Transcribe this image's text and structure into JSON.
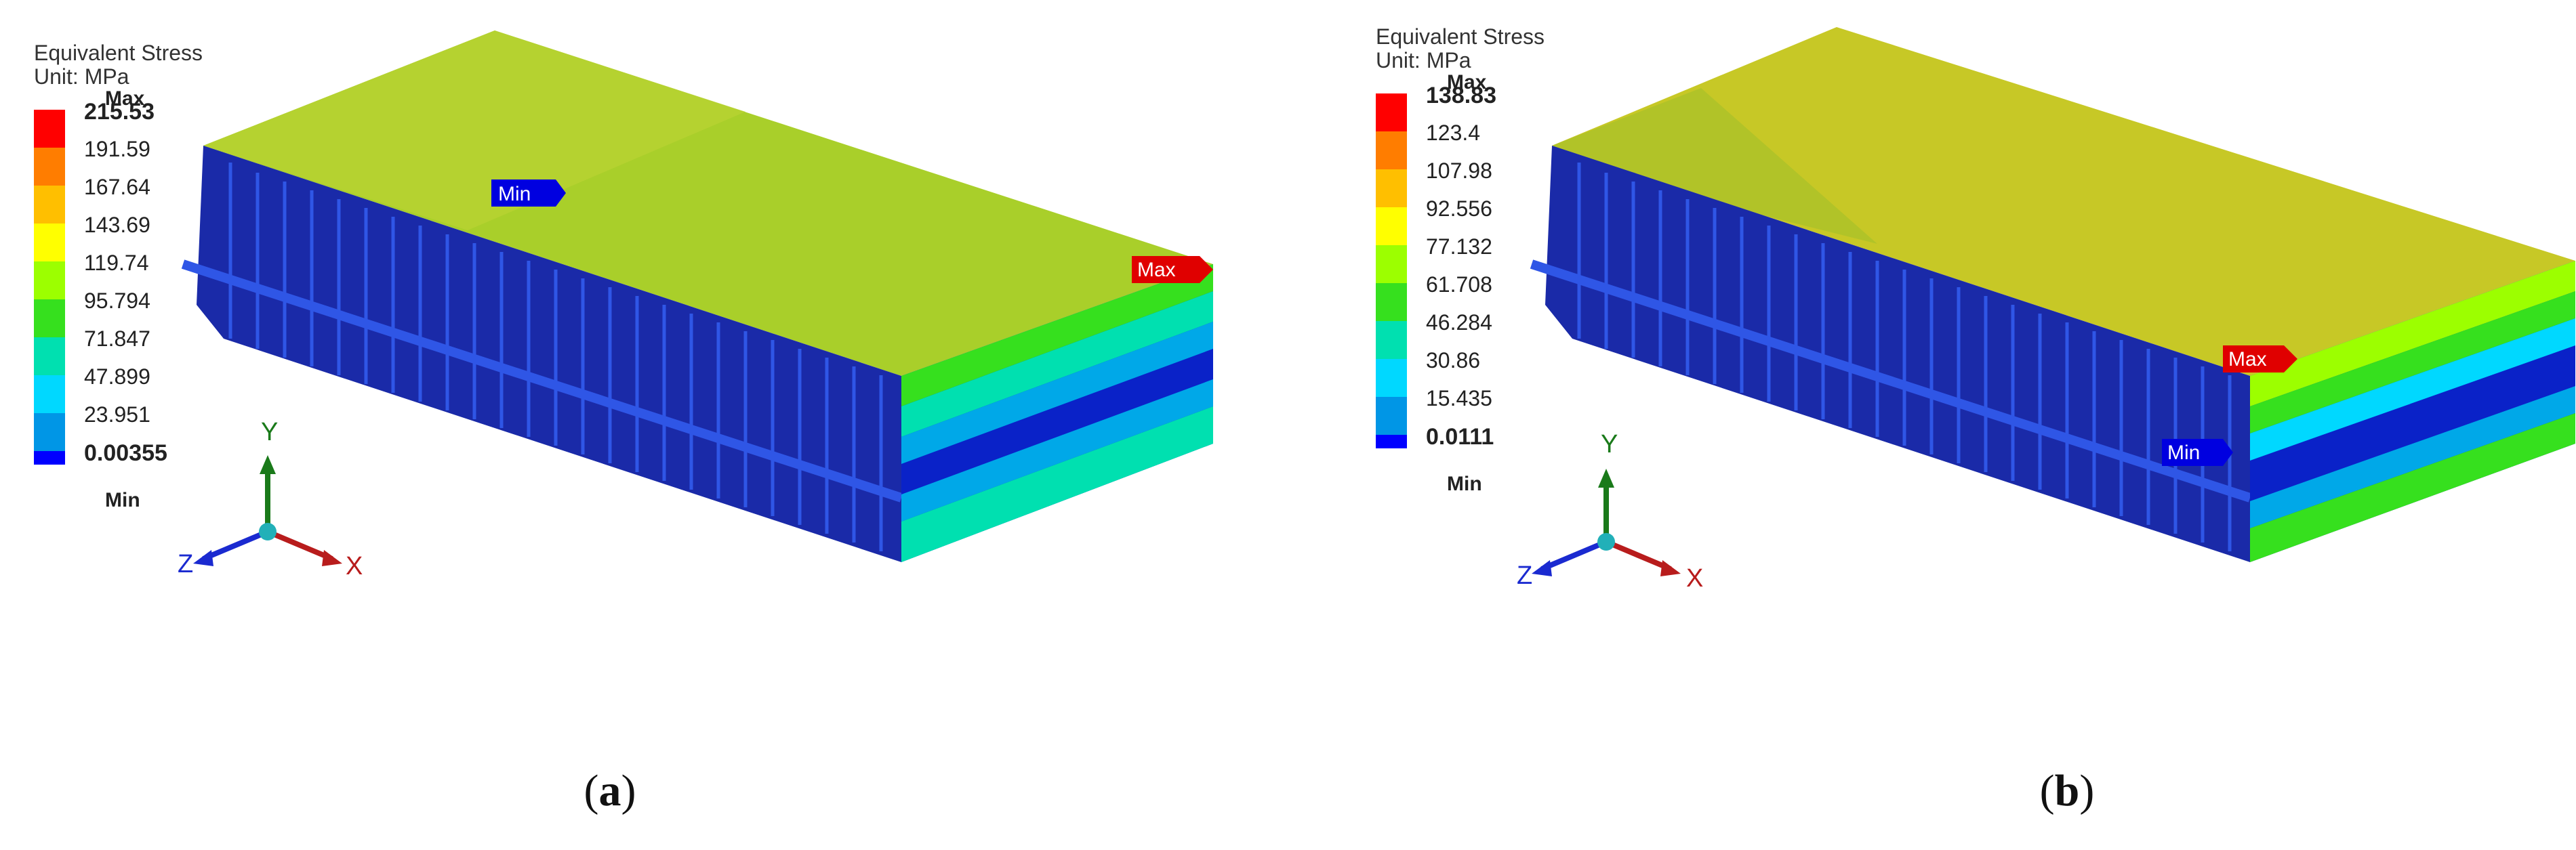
{
  "panels": [
    {
      "legend": {
        "title": "Equivalent Stress",
        "unit": "Unit: MPa",
        "max_label": "Max",
        "min_label": "Min",
        "levels": [
          "215.53",
          "191.59",
          "167.64",
          "143.69",
          "119.74",
          "95.794",
          "71.847",
          "47.899",
          "23.951",
          "0.00355"
        ],
        "colors": [
          "#ff0000",
          "#ff7d00",
          "#ffbf00",
          "#ffff00",
          "#9cff00",
          "#36e01e",
          "#00e0b0",
          "#00d8ff",
          "#0096e6",
          "#0000ff"
        ]
      },
      "probe_max": "Max",
      "probe_min": "Min",
      "axis": {
        "x": "X",
        "y": "Y",
        "z": "Z"
      },
      "caption_letter": "a"
    },
    {
      "legend": {
        "title": "Equivalent Stress",
        "unit": "Unit: MPa",
        "max_label": "Max",
        "min_label": "Min",
        "levels": [
          "138.83",
          "123.4",
          "107.98",
          "92.556",
          "77.132",
          "61.708",
          "46.284",
          "30.86",
          "15.435",
          "0.0111"
        ],
        "colors": [
          "#ff0000",
          "#ff7d00",
          "#ffbf00",
          "#ffff00",
          "#9cff00",
          "#36e01e",
          "#00e0b0",
          "#00d8ff",
          "#0096e6",
          "#0000ff"
        ]
      },
      "probe_max": "Max",
      "probe_min": "Min",
      "axis": {
        "x": "X",
        "y": "Y",
        "z": "Z"
      },
      "caption_letter": "b"
    }
  ],
  "caption_paren_open": "(",
  "caption_paren_close": ")"
}
